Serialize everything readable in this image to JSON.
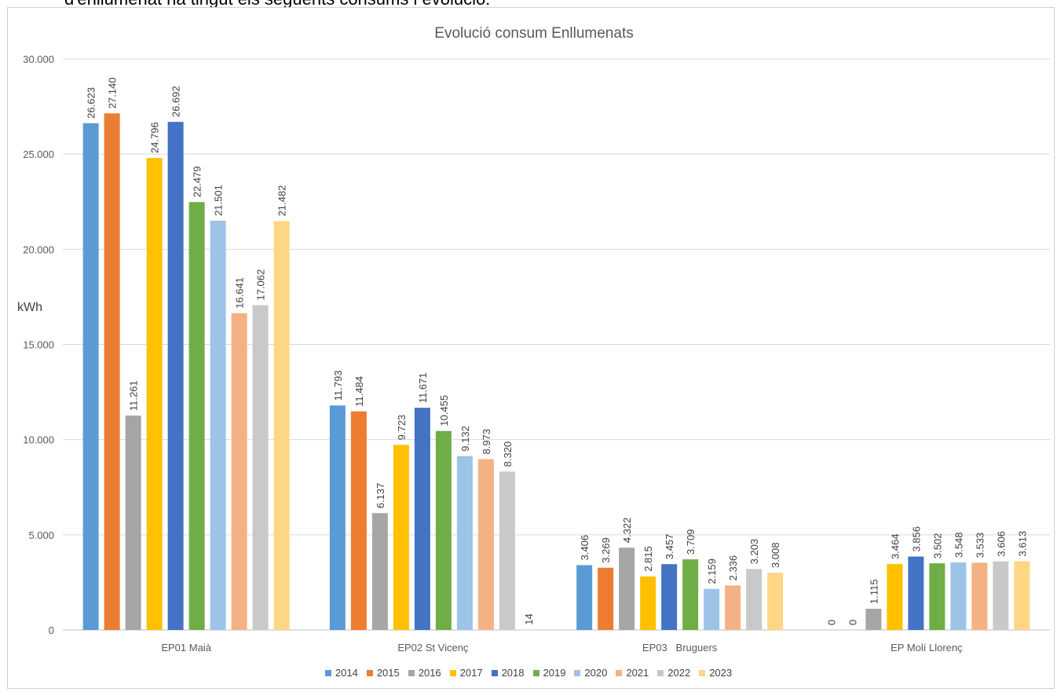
{
  "header_text": "d'enllumenat ha tingut els següents consums i evolució:",
  "chart_data": {
    "type": "bar",
    "title": "Evolució consum Enllumenats",
    "ylabel": "kWh",
    "xlabel": "",
    "ylim": [
      0,
      30000
    ],
    "yticks": [
      "0",
      "5.000",
      "10.000",
      "15.000",
      "20.000",
      "25.000",
      "30.000"
    ],
    "grid": true,
    "legend_position": "bottom",
    "categories": [
      "EP01 Maià",
      "EP02 St Vicenç",
      "EP03   Bruguers",
      "EP Molí Llorenç"
    ],
    "series": [
      {
        "name": "2014",
        "color": "#5B9BD5",
        "values": [
          26623,
          11793,
          3406,
          0
        ],
        "labels": [
          "26.623",
          "11.793",
          "3.406",
          "0"
        ]
      },
      {
        "name": "2015",
        "color": "#ED7D31",
        "values": [
          27140,
          11484,
          3269,
          0
        ],
        "labels": [
          "27.140",
          "11.484",
          "3.269",
          "0"
        ]
      },
      {
        "name": "2016",
        "color": "#A5A5A5",
        "values": [
          11261,
          6137,
          4322,
          1115
        ],
        "labels": [
          "11.261",
          "6.137",
          "4.322",
          "1.115"
        ]
      },
      {
        "name": "2017",
        "color": "#FFC000",
        "values": [
          24796,
          9723,
          2815,
          3464
        ],
        "labels": [
          "24.796",
          "9.723",
          "2.815",
          "3.464"
        ]
      },
      {
        "name": "2018",
        "color": "#4472C4",
        "values": [
          26692,
          11671,
          3457,
          3856
        ],
        "labels": [
          "26.692",
          "11.671",
          "3.457",
          "3.856"
        ]
      },
      {
        "name": "2019",
        "color": "#70AD47",
        "values": [
          22479,
          10455,
          3709,
          3502
        ],
        "labels": [
          "22.479",
          "10.455",
          "3.709",
          "3.502"
        ]
      },
      {
        "name": "2020",
        "color": "#9DC3E6",
        "values": [
          21501,
          9132,
          2159,
          3548
        ],
        "labels": [
          "21.501",
          "9.132",
          "2.159",
          "3.548"
        ]
      },
      {
        "name": "2021",
        "color": "#F4B183",
        "values": [
          16641,
          8973,
          2336,
          3533
        ],
        "labels": [
          "16.641",
          "8.973",
          "2.336",
          "3.533"
        ]
      },
      {
        "name": "2022",
        "color": "#C9C9C9",
        "values": [
          17062,
          8320,
          3203,
          3606
        ],
        "labels": [
          "17.062",
          "8.320",
          "3.203",
          "3.606"
        ]
      },
      {
        "name": "2023",
        "color": "#FFD686",
        "values": [
          21482,
          14,
          3008,
          3613
        ],
        "labels": [
          "21.482",
          "14",
          "3.008",
          "3.613"
        ]
      }
    ]
  }
}
